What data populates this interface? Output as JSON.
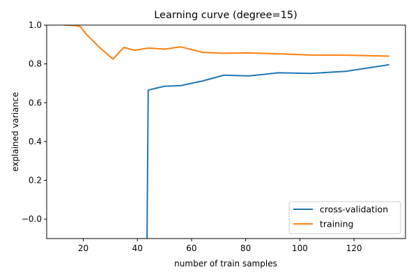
{
  "chart_data": {
    "type": "line",
    "title": "Learning curve (degree=15)",
    "xlabel": "number of train samples",
    "ylabel": "explained variance",
    "xlim": [
      6.5,
      139
    ],
    "ylim": [
      -0.1,
      1.0
    ],
    "xticks": [
      20,
      40,
      60,
      80,
      100,
      120
    ],
    "yticks": [
      -0.0,
      0.2,
      0.4,
      0.6,
      0.8,
      1.0
    ],
    "xtick_labels": [
      "20",
      "40",
      "60",
      "80",
      "100",
      "120"
    ],
    "ytick_labels": [
      "−0.0",
      "0.2",
      "0.4",
      "0.6",
      "0.8",
      "1.0"
    ],
    "grid": false,
    "legend_position": "lower-right",
    "series": [
      {
        "name": "cross-validation",
        "color": "#1f77b4",
        "x": [
          43.5,
          44,
          47,
          50,
          56,
          64,
          72,
          81,
          92,
          104,
          117,
          133
        ],
        "y": [
          -0.2,
          0.665,
          0.675,
          0.685,
          0.688,
          0.712,
          0.742,
          0.738,
          0.754,
          0.751,
          0.762,
          0.796
        ]
      },
      {
        "name": "training",
        "color": "#ff7f0e",
        "x": [
          13,
          17,
          19,
          21,
          26,
          31,
          35,
          39,
          44,
          50,
          56,
          64,
          72,
          81,
          92,
          104,
          117,
          133
        ],
        "y": [
          1.0,
          0.998,
          0.992,
          0.955,
          0.885,
          0.825,
          0.885,
          0.87,
          0.882,
          0.876,
          0.888,
          0.86,
          0.855,
          0.857,
          0.852,
          0.846,
          0.845,
          0.84
        ]
      }
    ]
  }
}
